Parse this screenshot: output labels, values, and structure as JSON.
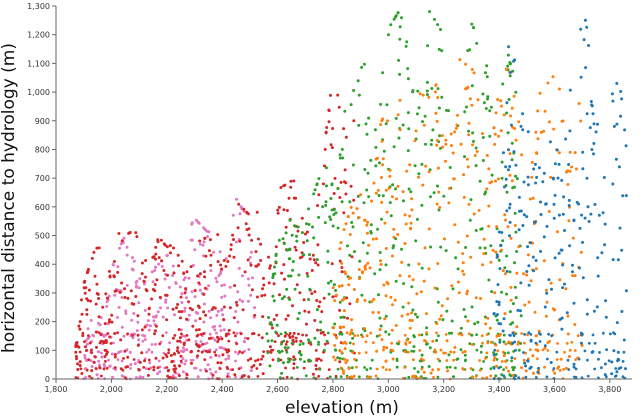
{
  "chart_data": {
    "type": "scatter",
    "xlabel": "elevation (m)",
    "ylabel": "horizontal distance to hydrology (m)",
    "xlim": [
      1800,
      3880
    ],
    "ylim": [
      0,
      1300
    ],
    "x_ticks": [
      1800,
      2000,
      2200,
      2400,
      2600,
      2800,
      3000,
      3200,
      3400,
      3600,
      3800
    ],
    "x_tick_labels": [
      "1,800",
      "2,000",
      "2,200",
      "2,400",
      "2,600",
      "2,800",
      "3,000",
      "3,200",
      "3,400",
      "3,600",
      "3,800"
    ],
    "y_ticks": [
      0,
      100,
      200,
      300,
      400,
      500,
      600,
      700,
      800,
      900,
      1000,
      1100,
      1200,
      1300
    ],
    "y_tick_labels": [
      "0",
      "100",
      "200",
      "300",
      "400",
      "500",
      "600",
      "700",
      "800",
      "900",
      "1,000",
      "1,100",
      "1,200",
      "1,300"
    ],
    "grid": "off",
    "legend": "none",
    "series": [
      {
        "color": "#d62728",
        "x_range": [
          1870,
          2880
        ],
        "envelope": [
          [
            1870,
            120
          ],
          [
            1900,
            330
          ],
          [
            1950,
            480
          ],
          [
            2000,
            540
          ],
          [
            2050,
            500
          ],
          [
            2100,
            530
          ],
          [
            2150,
            520
          ],
          [
            2200,
            460
          ],
          [
            2250,
            480
          ],
          [
            2300,
            520
          ],
          [
            2350,
            480
          ],
          [
            2400,
            520
          ],
          [
            2440,
            630
          ],
          [
            2500,
            570
          ],
          [
            2550,
            600
          ],
          [
            2600,
            660
          ],
          [
            2650,
            690
          ],
          [
            2700,
            690
          ],
          [
            2750,
            650
          ],
          [
            2800,
            1060
          ],
          [
            2850,
            1120
          ],
          [
            2880,
            1060
          ]
        ]
      },
      {
        "color": "#e377c2",
        "x_range": [
          1900,
          2520
        ],
        "envelope": [
          [
            1900,
            150
          ],
          [
            1960,
            270
          ],
          [
            2000,
            400
          ],
          [
            2050,
            500
          ],
          [
            2100,
            460
          ],
          [
            2150,
            380
          ],
          [
            2200,
            430
          ],
          [
            2250,
            460
          ],
          [
            2300,
            560
          ],
          [
            2350,
            510
          ],
          [
            2400,
            580
          ],
          [
            2450,
            630
          ],
          [
            2500,
            550
          ],
          [
            2520,
            500
          ]
        ]
      },
      {
        "color": "#2ca02c",
        "x_range": [
          2560,
          3480
        ],
        "envelope": [
          [
            2560,
            200
          ],
          [
            2620,
            600
          ],
          [
            2660,
            740
          ],
          [
            2700,
            560
          ],
          [
            2750,
            700
          ],
          [
            2800,
            880
          ],
          [
            2850,
            1000
          ],
          [
            2900,
            1080
          ],
          [
            2950,
            1160
          ],
          [
            3000,
            1220
          ],
          [
            3050,
            1300
          ],
          [
            3100,
            1300
          ],
          [
            3150,
            1280
          ],
          [
            3200,
            1200
          ],
          [
            3250,
            1180
          ],
          [
            3300,
            1240
          ],
          [
            3350,
            1140
          ],
          [
            3400,
            1280
          ],
          [
            3440,
            1100
          ],
          [
            3480,
            980
          ]
        ]
      },
      {
        "color": "#ff7f0e",
        "x_range": [
          2800,
          3700
        ],
        "envelope": [
          [
            2800,
            400
          ],
          [
            2900,
            700
          ],
          [
            3000,
            960
          ],
          [
            3050,
            1050
          ],
          [
            3100,
            1000
          ],
          [
            3150,
            980
          ],
          [
            3200,
            1080
          ],
          [
            3250,
            1120
          ],
          [
            3300,
            1080
          ],
          [
            3350,
            1060
          ],
          [
            3400,
            1100
          ],
          [
            3450,
            1060
          ],
          [
            3500,
            900
          ],
          [
            3550,
            1000
          ],
          [
            3600,
            1060
          ],
          [
            3650,
            1100
          ],
          [
            3700,
            1000
          ]
        ]
      },
      {
        "color": "#1f77b4",
        "x_range": [
          3380,
          3860
        ],
        "envelope": [
          [
            3380,
            200
          ],
          [
            3420,
            900
          ],
          [
            3440,
            1260
          ],
          [
            3480,
            1280
          ],
          [
            3500,
            1100
          ],
          [
            3520,
            800
          ],
          [
            3560,
            700
          ],
          [
            3600,
            900
          ],
          [
            3640,
            1100
          ],
          [
            3680,
            1180
          ],
          [
            3710,
            1260
          ],
          [
            3740,
            1100
          ],
          [
            3780,
            1060
          ],
          [
            3800,
            1080
          ],
          [
            3840,
            1000
          ],
          [
            3860,
            800
          ]
        ]
      }
    ]
  }
}
